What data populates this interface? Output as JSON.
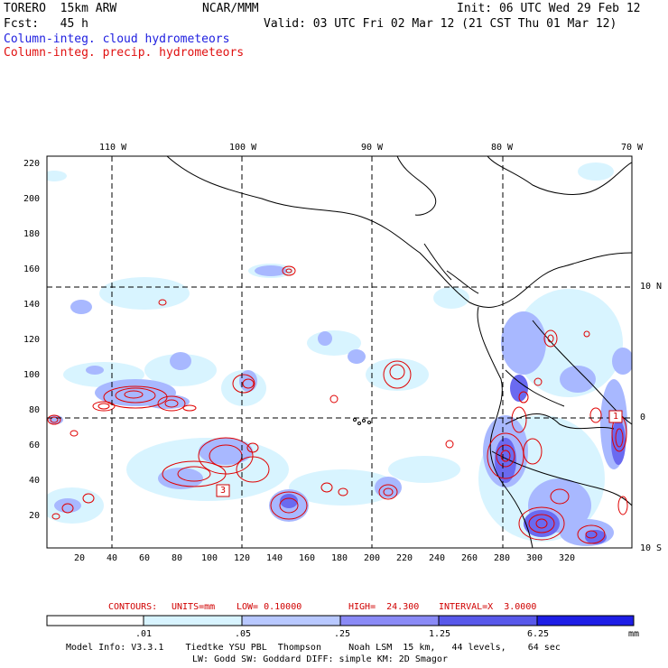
{
  "header": {
    "model": "TORERO  15km ARW",
    "center": "NCAR/MMM",
    "init": "Init: 06 UTC Wed 29 Feb 12",
    "fcst": "Fcst:   45 h",
    "valid": "Valid: 03 UTC Fri 02 Mar 12 (21 CST Thu 01 Mar 12)",
    "field_cloud": "Column-integ. cloud hydrometeors",
    "field_precip": "Column-integ. precip. hydrometeors"
  },
  "map": {
    "lon_labels": [
      "110 W",
      "100 W",
      "90 W",
      "80 W",
      "70 W"
    ],
    "lat_labels": [
      "10 N",
      "0",
      "10 S"
    ],
    "y_ticks": [
      "220",
      "200",
      "180",
      "160",
      "140",
      "120",
      "100",
      "80",
      "60",
      "40",
      "20"
    ],
    "x_ticks": [
      "20",
      "40",
      "60",
      "80",
      "100",
      "120",
      "140",
      "160",
      "180",
      "200",
      "220",
      "240",
      "260",
      "280",
      "300",
      "320"
    ],
    "box_labels": [
      "3",
      "1"
    ],
    "colors": {
      "precip_contour": "#e00000",
      "grid": "#000000",
      "coast": "#000000"
    }
  },
  "contours": {
    "label": "CONTOURS:",
    "units": "UNITS=mm",
    "low": "LOW= 0.10000",
    "high": "HIGH=  24.300",
    "interval": "INTERVAL=X  3.0000"
  },
  "colorbar": {
    "labels": [
      ".01",
      ".05",
      ".25",
      "1.25",
      "6.25"
    ],
    "unit": "mm",
    "colors": [
      "#ffffff",
      "#d8f4ff",
      "#b8c8ff",
      "#9090ff",
      "#6464f0",
      "#3c3ce6",
      "#1a1ae6"
    ]
  },
  "footer": {
    "line1": "Model Info: V3.3.1    Tiedtke YSU PBL  Thompson     Noah LSM  15 km,   44 levels,    64 sec",
    "line2": "LW: Godd SW: Goddard DIFF: simple KM: 2D Smagor"
  }
}
